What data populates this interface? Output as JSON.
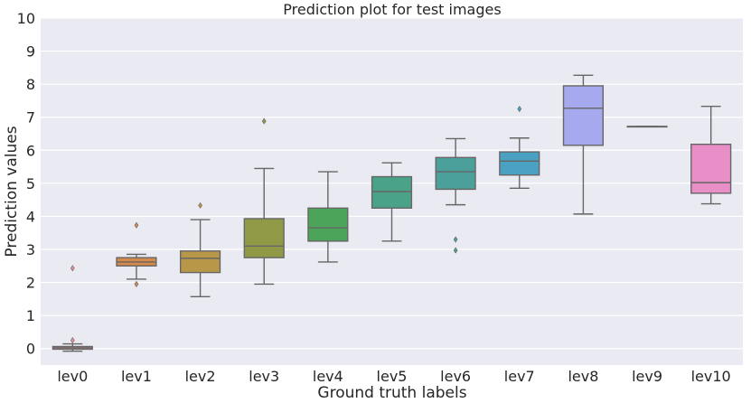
{
  "chart_data": {
    "type": "box",
    "title": "Prediction plot for test images",
    "xlabel": "Ground truth labels",
    "ylabel": "Prediction values",
    "ylim": [
      -0.5,
      10
    ],
    "yticks": [
      0,
      1,
      2,
      3,
      4,
      5,
      6,
      7,
      8,
      9,
      10
    ],
    "grid": true,
    "categories": [
      "lev0",
      "lev1",
      "lev2",
      "lev3",
      "lev4",
      "lev5",
      "lev6",
      "lev7",
      "lev8",
      "lev9",
      "lev10"
    ],
    "boxes": [
      {
        "category": "lev0",
        "whisker_low": -0.08,
        "q1": -0.02,
        "median": 0.02,
        "q3": 0.06,
        "whisker_high": 0.14,
        "color": "#ea8f98",
        "outliers": [
          2.43,
          0.25
        ]
      },
      {
        "category": "lev1",
        "whisker_low": 2.1,
        "q1": 2.5,
        "median": 2.62,
        "q3": 2.75,
        "whisker_high": 2.85,
        "color": "#d5894b",
        "outliers": [
          3.73,
          1.95
        ]
      },
      {
        "category": "lev2",
        "whisker_low": 1.57,
        "q1": 2.3,
        "median": 2.73,
        "q3": 2.95,
        "whisker_high": 3.9,
        "color": "#b89848",
        "outliers": [
          4.33
        ]
      },
      {
        "category": "lev3",
        "whisker_low": 1.95,
        "q1": 2.75,
        "median": 3.1,
        "q3": 3.93,
        "whisker_high": 5.45,
        "color": "#909a46",
        "outliers": [
          6.88
        ]
      },
      {
        "category": "lev4",
        "whisker_low": 2.62,
        "q1": 3.25,
        "median": 3.65,
        "q3": 4.25,
        "whisker_high": 5.35,
        "color": "#4ca45a",
        "outliers": []
      },
      {
        "category": "lev5",
        "whisker_low": 3.25,
        "q1": 4.25,
        "median": 4.75,
        "q3": 5.2,
        "whisker_high": 5.62,
        "color": "#4aa388",
        "outliers": []
      },
      {
        "category": "lev6",
        "whisker_low": 4.35,
        "q1": 4.82,
        "median": 5.35,
        "q3": 5.78,
        "whisker_high": 6.35,
        "color": "#4ba09c",
        "outliers": [
          3.3,
          2.97
        ]
      },
      {
        "category": "lev7",
        "whisker_low": 4.85,
        "q1": 5.25,
        "median": 5.67,
        "q3": 5.95,
        "whisker_high": 6.37,
        "color": "#4aa1c2",
        "outliers": [
          7.25
        ]
      },
      {
        "category": "lev8",
        "whisker_low": 4.07,
        "q1": 6.15,
        "median": 7.27,
        "q3": 7.95,
        "whisker_high": 8.27,
        "color": "#a6a9ed",
        "outliers": []
      },
      {
        "category": "lev9",
        "whisker_low": 6.72,
        "q1": 6.72,
        "median": 6.72,
        "q3": 6.72,
        "whisker_high": 6.72,
        "color": "#c49ae6",
        "outliers": []
      },
      {
        "category": "lev10",
        "whisker_low": 4.38,
        "q1": 4.7,
        "median": 5.02,
        "q3": 6.18,
        "whisker_high": 7.33,
        "color": "#e88fc8",
        "outliers": []
      }
    ]
  }
}
